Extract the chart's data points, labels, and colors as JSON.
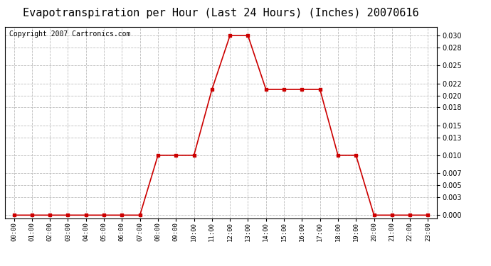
{
  "title": "Evapotranspiration per Hour (Last 24 Hours) (Inches) 20070616",
  "copyright_text": "Copyright 2007 Cartronics.com",
  "x_labels": [
    "00:00",
    "01:00",
    "02:00",
    "03:00",
    "04:00",
    "05:00",
    "06:00",
    "07:00",
    "08:00",
    "09:00",
    "10:00",
    "11:00",
    "12:00",
    "13:00",
    "14:00",
    "15:00",
    "16:00",
    "17:00",
    "18:00",
    "19:00",
    "20:00",
    "21:00",
    "22:00",
    "23:00"
  ],
  "y_values": [
    0.0,
    0.0,
    0.0,
    0.0,
    0.0,
    0.0,
    0.0,
    0.0,
    0.01,
    0.01,
    0.01,
    0.021,
    0.03,
    0.03,
    0.021,
    0.021,
    0.021,
    0.021,
    0.01,
    0.01,
    0.0,
    0.0,
    0.0,
    0.0
  ],
  "line_color": "#cc0000",
  "marker": "s",
  "marker_size": 3,
  "background_color": "#ffffff",
  "grid_color": "#bbbbbb",
  "yticks": [
    0.0,
    0.003,
    0.005,
    0.007,
    0.01,
    0.013,
    0.015,
    0.018,
    0.02,
    0.022,
    0.025,
    0.028,
    0.03
  ],
  "ylim": [
    -0.0005,
    0.0315
  ],
  "title_fontsize": 11,
  "copyright_fontsize": 7,
  "fig_width": 6.9,
  "fig_height": 3.75,
  "fig_dpi": 100
}
